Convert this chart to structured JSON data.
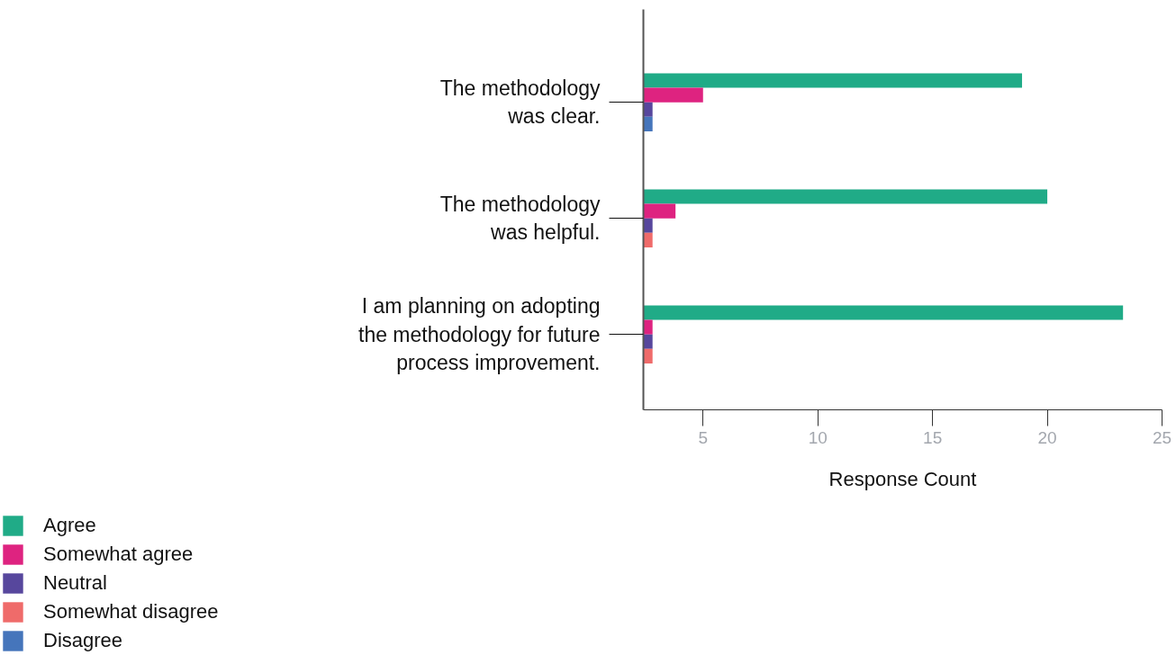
{
  "chart_data": {
    "type": "bar",
    "orientation": "horizontal",
    "xlabel": "Response Count",
    "categories": [
      "The methodology\nwas clear.",
      "The methodology\nwas helpful.",
      "I am planning on adopting\nthe methodology for future\nprocess improvement."
    ],
    "series": [
      {
        "name": "Agree",
        "color": "#20ab87",
        "values": [
          18.9,
          20.0,
          23.3
        ]
      },
      {
        "name": "Somewhat agree",
        "color": "#de2380",
        "values": [
          5.0,
          3.8,
          2.8
        ]
      },
      {
        "name": "Neutral",
        "color": "#57479d",
        "values": [
          2.8,
          2.8,
          2.8
        ]
      },
      {
        "name": "Somewhat disagree",
        "color": "#ef6b6a",
        "values": [
          null,
          2.8,
          2.8
        ]
      },
      {
        "name": "Disagree",
        "color": "#4575bb",
        "values": [
          2.8,
          null,
          null
        ]
      }
    ],
    "xlim": [
      2.4,
      25
    ],
    "xticks": [
      5,
      10,
      15,
      20,
      25
    ],
    "legend": "bottom left"
  }
}
